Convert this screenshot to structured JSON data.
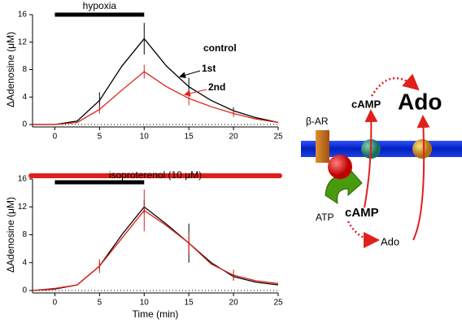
{
  "chart_data": [
    {
      "type": "line",
      "ylabel": "ΔAdenosine (μM)",
      "x": [
        -2.5,
        0,
        2.5,
        5,
        7.5,
        10,
        12.5,
        15,
        17.5,
        20,
        22.5,
        25
      ],
      "xlim": [
        -2.5,
        25
      ],
      "xticks": [
        0,
        5,
        10,
        15,
        20,
        25
      ],
      "ylim": [
        0,
        16
      ],
      "yticks": [
        0,
        4,
        8,
        12,
        16
      ],
      "zero_line": true,
      "series": [
        {
          "name": "1st",
          "color": "#000000",
          "values": [
            0,
            0,
            0.5,
            3.5,
            8.5,
            12.5,
            8.5,
            5.5,
            3.5,
            2,
            1,
            0.3
          ],
          "errors": [
            null,
            null,
            null,
            1.2,
            null,
            2.3,
            null,
            1.3,
            null,
            0.5,
            null,
            null
          ]
        },
        {
          "name": "2nd",
          "color": "#e0201b",
          "values": [
            0,
            0,
            0.3,
            2.2,
            5,
            7.7,
            5.5,
            3.8,
            2.6,
            1.6,
            0.8,
            0.3
          ],
          "errors": [
            null,
            null,
            null,
            0.6,
            null,
            1,
            null,
            1,
            null,
            0.5,
            null,
            null
          ]
        }
      ],
      "annotations": [
        "control"
      ],
      "bands": [
        {
          "label": "hypoxia",
          "xrange": [
            0,
            10
          ],
          "color": "#000000"
        }
      ]
    },
    {
      "type": "line",
      "ylabel": "ΔAdenosine (μM)",
      "xlabel": "Time (min)",
      "x": [
        -2.5,
        0,
        2.5,
        5,
        7.5,
        10,
        12.5,
        15,
        17.5,
        20,
        22.5,
        25
      ],
      "xlim": [
        -2.5,
        25
      ],
      "xticks": [
        0,
        5,
        10,
        15,
        20,
        25
      ],
      "ylim": [
        0,
        16
      ],
      "yticks": [
        0,
        4,
        8,
        12,
        16
      ],
      "zero_line": true,
      "series": [
        {
          "color": "#000000",
          "values": [
            0,
            0.2,
            0.8,
            3.5,
            8,
            12,
            9.5,
            6.8,
            4,
            2,
            1.2,
            0.8
          ],
          "errors": [
            null,
            null,
            null,
            0.6,
            null,
            1,
            null,
            2.8,
            null,
            0.5,
            null,
            null
          ]
        },
        {
          "color": "#e0201b",
          "values": [
            0,
            0.3,
            0.8,
            3.5,
            7.5,
            11.5,
            9.3,
            6.8,
            3.8,
            2.2,
            1.4,
            1
          ],
          "errors": [
            null,
            null,
            null,
            1,
            null,
            3,
            null,
            1.5,
            null,
            0.8,
            null,
            null
          ]
        }
      ],
      "bands": [
        {
          "label": "isoproterenol (10 μM)",
          "xrange": [
            -2.5,
            25
          ],
          "color": "#e0201b"
        },
        {
          "xrange": [
            0,
            10
          ],
          "color": "#000000"
        }
      ]
    }
  ],
  "diagram": {
    "labels": {
      "receptor": "β-AR",
      "camp_out": "cAMP",
      "ado_out": "Ado",
      "atp": "ATP",
      "camp_in": "cAMP",
      "ado_in": "Ado"
    }
  }
}
